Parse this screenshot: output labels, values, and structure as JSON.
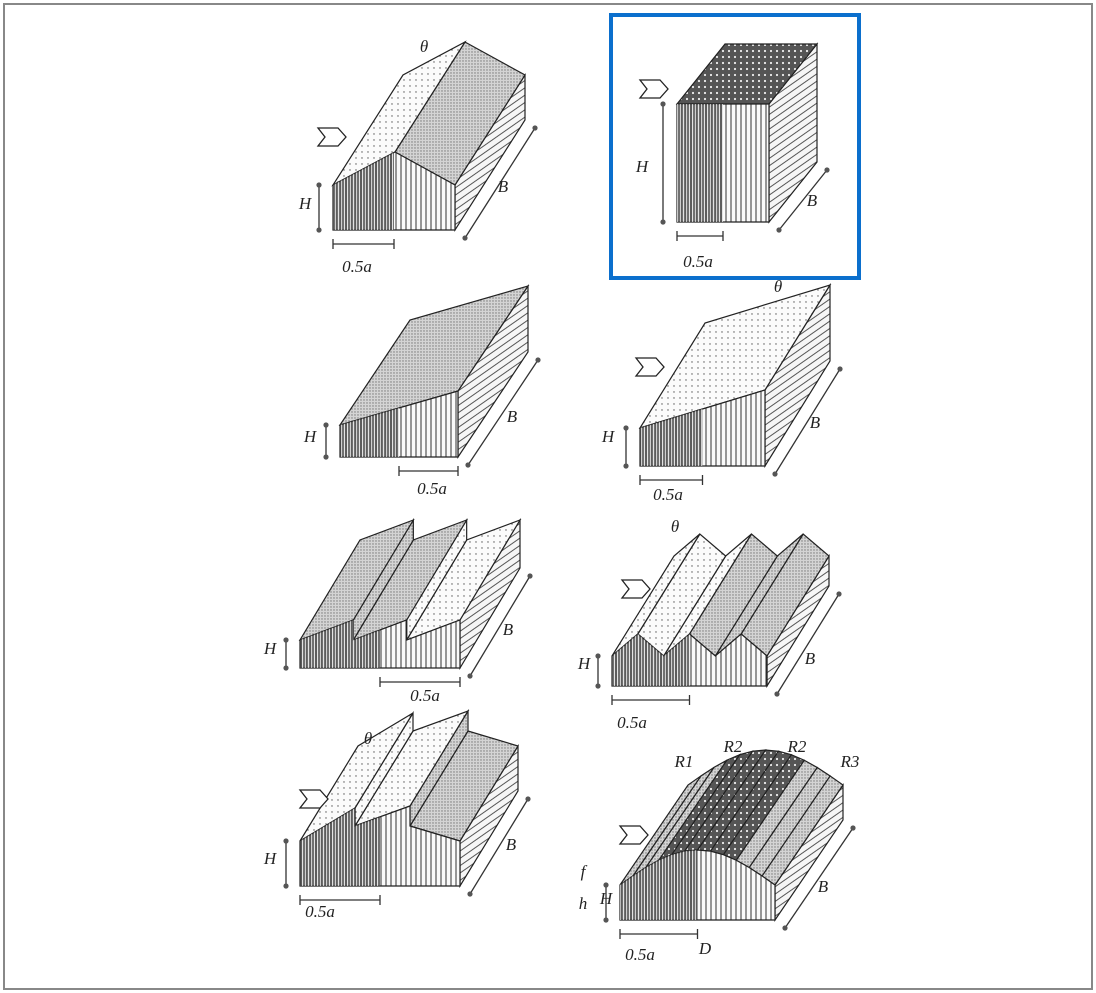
{
  "panels": [
    {
      "labels": [
        "θ",
        "H",
        "B",
        "0.5a"
      ]
    },
    {
      "labels": [
        "H",
        "B",
        "0.5a"
      ]
    },
    {
      "labels": [
        "H",
        "B",
        "0.5a"
      ]
    },
    {
      "labels": [
        "θ",
        "H",
        "B",
        "0.5a"
      ]
    },
    {
      "labels": [
        "H",
        "B",
        "0.5a"
      ]
    },
    {
      "labels": [
        "θ",
        "H",
        "B",
        "0.5a"
      ]
    },
    {
      "labels": [
        "θ",
        "H",
        "B",
        "0.5a"
      ]
    },
    {
      "labels": [
        "R1",
        "R2",
        "R2",
        "R3",
        "f",
        "h",
        "H",
        "B",
        "0.5a",
        "D"
      ]
    }
  ]
}
